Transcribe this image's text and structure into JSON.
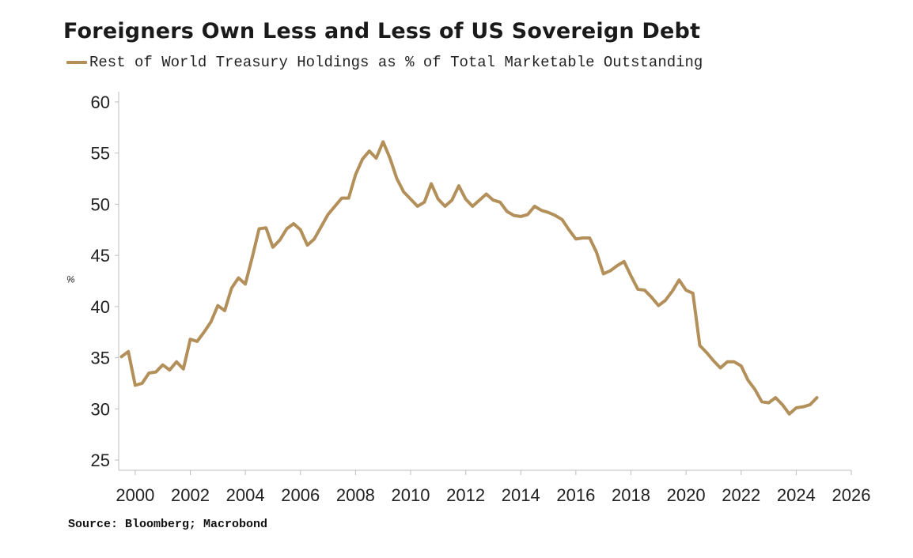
{
  "chart_data": {
    "type": "line",
    "title": "Foreigners Own Less and Less of US Sovereign Debt",
    "ylabel": "%",
    "xlabel": "",
    "xlim": [
      1999.4,
      2026.0
    ],
    "ylim": [
      24,
      61
    ],
    "x_ticks": [
      2000,
      2002,
      2004,
      2006,
      2008,
      2010,
      2012,
      2014,
      2016,
      2018,
      2020,
      2022,
      2024,
      2026
    ],
    "x_tick_labels": [
      "2000",
      "2002",
      "2004",
      "2006",
      "2008",
      "2010",
      "2012",
      "2014",
      "2016",
      "2018",
      "2020",
      "2022",
      "2024",
      "2026"
    ],
    "y_ticks": [
      25,
      30,
      35,
      40,
      45,
      50,
      55,
      60
    ],
    "y_tick_labels": [
      "25",
      "30",
      "35",
      "40",
      "45",
      "50",
      "55",
      "60"
    ],
    "grid": false,
    "legend_position": "top-left",
    "series": [
      {
        "name": "Rest of World Treasury Holdings as % of Total Marketable Outstanding",
        "color": "#B38F5A",
        "x": [
          1999.5,
          1999.75,
          2000.0,
          2000.25,
          2000.5,
          2000.75,
          2001.0,
          2001.25,
          2001.5,
          2001.75,
          2002.0,
          2002.25,
          2002.5,
          2002.75,
          2003.0,
          2003.25,
          2003.5,
          2003.75,
          2004.0,
          2004.25,
          2004.5,
          2004.75,
          2005.0,
          2005.25,
          2005.5,
          2005.75,
          2006.0,
          2006.25,
          2006.5,
          2006.75,
          2007.0,
          2007.25,
          2007.5,
          2007.75,
          2008.0,
          2008.25,
          2008.5,
          2008.75,
          2009.0,
          2009.25,
          2009.5,
          2009.75,
          2010.0,
          2010.25,
          2010.5,
          2010.75,
          2011.0,
          2011.25,
          2011.5,
          2011.75,
          2012.0,
          2012.25,
          2012.5,
          2012.75,
          2013.0,
          2013.25,
          2013.5,
          2013.75,
          2014.0,
          2014.25,
          2014.5,
          2014.75,
          2015.0,
          2015.25,
          2015.5,
          2015.75,
          2016.0,
          2016.25,
          2016.5,
          2016.75,
          2017.0,
          2017.25,
          2017.5,
          2017.75,
          2018.0,
          2018.25,
          2018.5,
          2018.75,
          2019.0,
          2019.25,
          2019.5,
          2019.75,
          2020.0,
          2020.25,
          2020.5,
          2020.75,
          2021.0,
          2021.25,
          2021.5,
          2021.75,
          2022.0,
          2022.25,
          2022.5,
          2022.75,
          2023.0,
          2023.25,
          2023.5,
          2023.75,
          2024.0,
          2024.25,
          2024.5,
          2024.75
        ],
        "values": [
          35.1,
          35.6,
          32.3,
          32.5,
          33.5,
          33.6,
          34.3,
          33.8,
          34.6,
          33.9,
          36.8,
          36.6,
          37.5,
          38.5,
          40.1,
          39.6,
          41.8,
          42.8,
          42.2,
          44.8,
          47.6,
          47.7,
          45.8,
          46.5,
          47.6,
          48.1,
          47.5,
          46.0,
          46.6,
          47.8,
          49.0,
          49.8,
          50.6,
          50.6,
          52.9,
          54.4,
          55.2,
          54.5,
          56.1,
          54.5,
          52.5,
          51.2,
          50.5,
          49.8,
          50.2,
          52.0,
          50.5,
          49.8,
          50.4,
          51.8,
          50.5,
          49.8,
          50.4,
          51.0,
          50.4,
          50.2,
          49.3,
          48.9,
          48.8,
          49.0,
          49.8,
          49.4,
          49.2,
          48.9,
          48.5,
          47.5,
          46.6,
          46.7,
          46.7,
          45.3,
          43.2,
          43.5,
          44.0,
          44.4,
          43.0,
          41.7,
          41.6,
          40.9,
          40.1,
          40.6,
          41.5,
          42.6,
          41.6,
          41.3,
          36.2,
          35.5,
          34.7,
          34.0,
          34.6,
          34.6,
          34.2,
          32.8,
          31.9,
          30.7,
          30.6,
          31.1,
          30.4,
          29.5,
          30.1,
          30.2,
          30.4,
          31.1
        ]
      }
    ],
    "source": "Source: Bloomberg; Macrobond"
  }
}
